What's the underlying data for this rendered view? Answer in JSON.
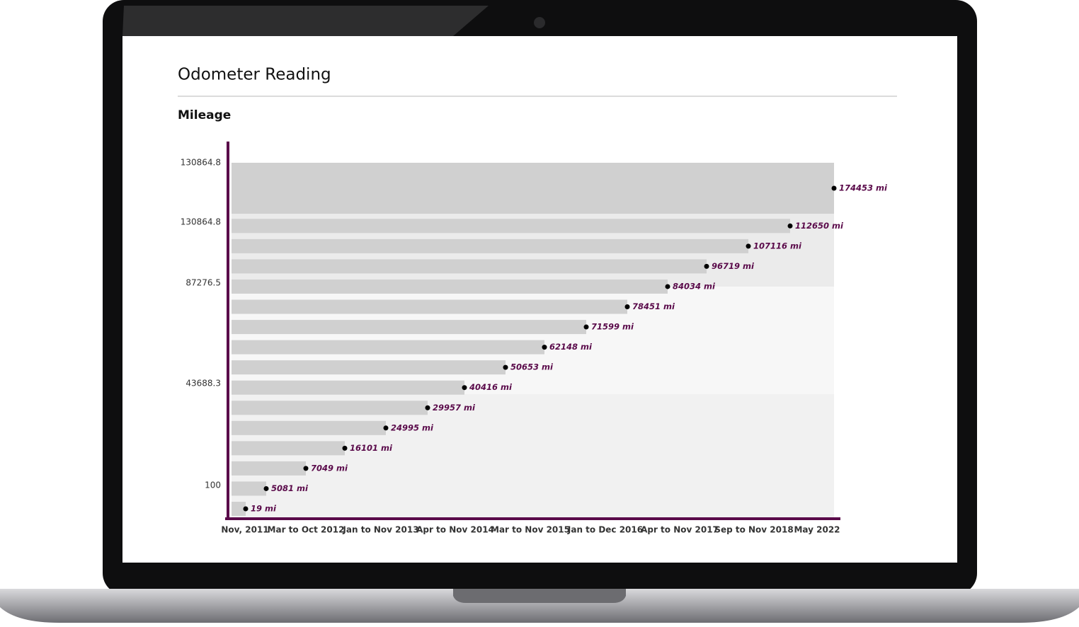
{
  "screen": {
    "title": "Odometer Reading",
    "section": "Mileage",
    "chart": {
      "y_labels": [
        "130864.8",
        "130864.8",
        "87276.5",
        "43688.3",
        "100"
      ],
      "x_labels": [
        "Nov, 2011",
        "Mar to Oct 2012",
        "Jan to Nov 2013",
        "Apr to Nov 2014",
        "Mar to Nov 2015",
        "Jan to Dec 2016",
        "Apr to Nov 2017",
        "Sep to Nov 2018",
        "May 2022"
      ],
      "readings": [
        "19 mi",
        "5081 mi",
        "7049 mi",
        "16101 mi",
        "24995 mi",
        "29957 mi",
        "40416 mi",
        "50653 mi",
        "62148 mi",
        "71599 mi",
        "78451 mi",
        "84034 mi",
        "96719 mi",
        "107116 mi",
        "112650 mi",
        "174453 mi"
      ]
    }
  }
}
